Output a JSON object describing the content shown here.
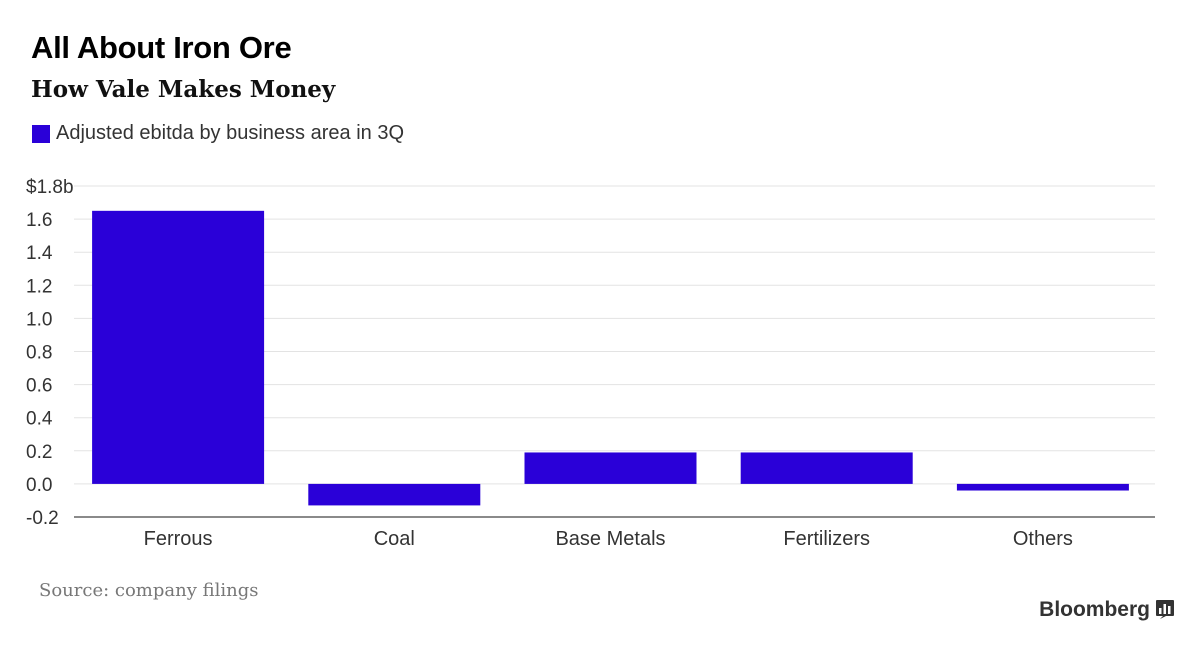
{
  "header": {
    "title": "All About Iron Ore",
    "subtitle": "How Vale Makes Money"
  },
  "legend": {
    "label": "Adjusted ebitda by business area in 3Q",
    "color": "#2a00d8"
  },
  "footer": {
    "source": "Source: company filings",
    "brand": "Bloomberg"
  },
  "chart_data": {
    "type": "bar",
    "categories": [
      "Ferrous",
      "Coal",
      "Base Metals",
      "Fertilizers",
      "Others"
    ],
    "series": [
      {
        "name": "Adjusted ebitda by business area in 3Q",
        "values": [
          1.65,
          -0.13,
          0.19,
          0.19,
          -0.04
        ]
      }
    ],
    "ylim": [
      -0.2,
      1.8
    ],
    "yticks": [
      1.8,
      1.6,
      1.4,
      1.2,
      1.0,
      0.8,
      0.6,
      0.4,
      0.2,
      0.0,
      -0.2
    ],
    "ytick_labels": [
      "$1.8b",
      "1.6",
      "1.4",
      "1.2",
      "1.0",
      "0.8",
      "0.6",
      "0.4",
      "0.2",
      "0.0",
      "-0.2"
    ],
    "grid": true,
    "legend_position": "top-left",
    "bar_color": "#2a00d8"
  }
}
